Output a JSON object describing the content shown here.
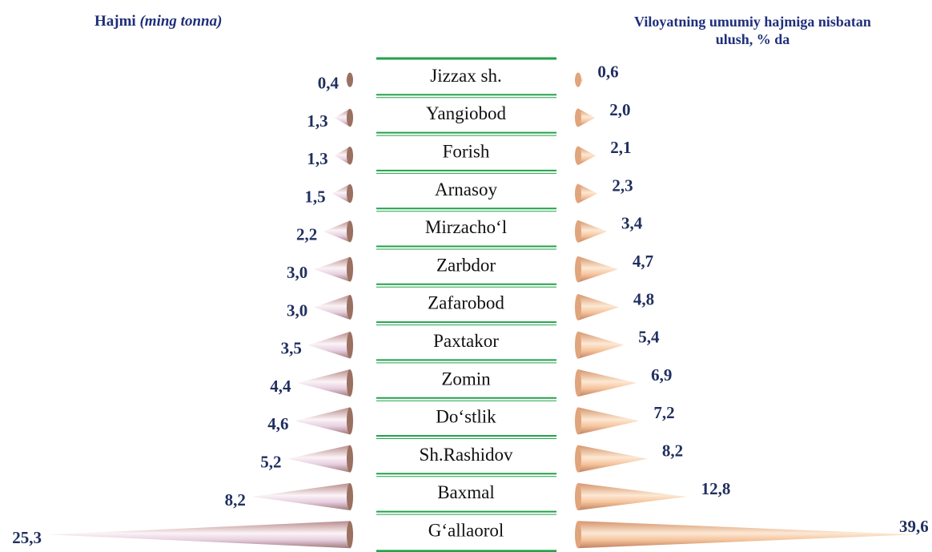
{
  "chart_data": {
    "type": "cone-butterfly",
    "left_title": "Hajmi",
    "left_title_unit": "(ming tonna)",
    "right_title": "Viloyatning umumiy hajmiga nisbatan ulush, % da",
    "categories": [
      "Jizzax sh.",
      "Yangiobod",
      "Forish",
      "Arnasoy",
      "Mirzacho‘l",
      "Zarbdor",
      "Zafarobod",
      "Paxtakor",
      "Zomin",
      "Do‘stlik",
      "Sh.Rashidov",
      "Baxmal",
      "G‘allaorol"
    ],
    "series": [
      {
        "name": "Hajmi (ming tonna)",
        "color": "#d9b8c8",
        "values": [
          0.4,
          1.3,
          1.3,
          1.5,
          2.2,
          3.0,
          3.0,
          3.5,
          4.4,
          4.6,
          5.2,
          8.2,
          25.3
        ],
        "value_labels": [
          "0,4",
          "1,3",
          "1,3",
          "1,5",
          "2,2",
          "3,0",
          "3,0",
          "3,5",
          "4,4",
          "4,6",
          "5,2",
          "8,2",
          "25,3"
        ]
      },
      {
        "name": "Viloyatning umumiy hajmiga nisbatan ulush, % da",
        "color": "#f2b98c",
        "values": [
          0.6,
          2.0,
          2.1,
          2.3,
          3.4,
          4.7,
          4.8,
          5.4,
          6.9,
          7.2,
          8.2,
          12.8,
          39.6
        ],
        "value_labels": [
          "0,6",
          "2,0",
          "2,1",
          "2,3",
          "3,4",
          "4,7",
          "4,8",
          "5,4",
          "6,9",
          "7,2",
          "8,2",
          "12,8",
          "39,6"
        ]
      }
    ]
  }
}
